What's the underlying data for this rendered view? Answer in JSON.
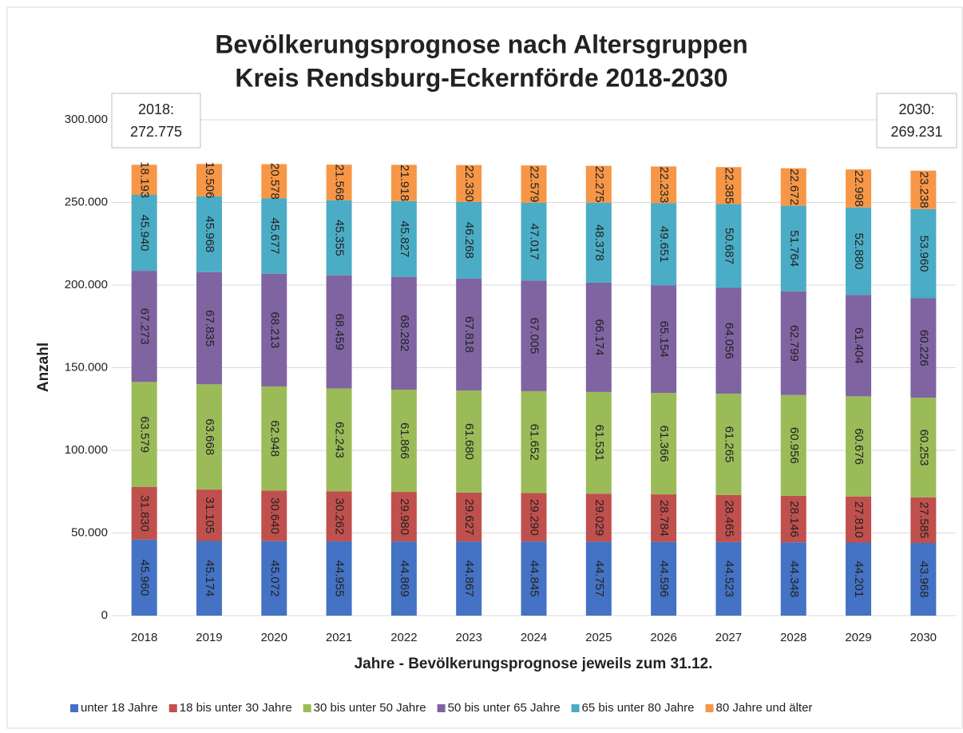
{
  "chart_data": {
    "type": "stacked_bar",
    "title": [
      "Bevölkerungsprognose nach Altersgruppen",
      "Kreis Rendsburg-Eckernförde 2018-2030"
    ],
    "ylabel": "Anzahl",
    "xlabel": "Jahre - Bevölkerungsprognose jeweils zum 31.12.",
    "categories": [
      "2018",
      "2019",
      "2020",
      "2021",
      "2022",
      "2023",
      "2024",
      "2025",
      "2026",
      "2027",
      "2028",
      "2029",
      "2030"
    ],
    "ylim": [
      0,
      300000
    ],
    "yticks": [
      0,
      {
        "value": 50000,
        "label": "50.000"
      },
      {
        "value": 100000,
        "label": "100.000"
      },
      {
        "value": 150000,
        "label": "150.000"
      },
      {
        "value": 200000,
        "label": "200.000"
      },
      {
        "value": 250000,
        "label": "250.000"
      },
      {
        "value": 300000,
        "label": "300.000"
      }
    ],
    "grid": true,
    "legend": "bottom",
    "annotations": [
      {
        "text": [
          "2018:",
          "272.775"
        ],
        "side": "left"
      },
      {
        "text": [
          "2030:",
          "269.231"
        ],
        "side": "right"
      }
    ],
    "series": [
      {
        "name": "unter 18 Jahre",
        "color": "#4472c4",
        "values": [
          45960,
          45174,
          45072,
          44955,
          44869,
          44867,
          44845,
          44757,
          44596,
          44523,
          44348,
          44201,
          43968
        ],
        "value_labels": [
          "45.960",
          "45.174",
          "45.072",
          "44.955",
          "44.869",
          "44.867",
          "44.845",
          "44.757",
          "44.596",
          "44.523",
          "44.348",
          "44.201",
          "43.968"
        ]
      },
      {
        "name": "18 bis unter 30 Jahre",
        "color": "#c0504d",
        "values": [
          31830,
          31105,
          30640,
          30262,
          29980,
          29627,
          29290,
          29029,
          28784,
          28465,
          28146,
          27810,
          27585
        ],
        "value_labels": [
          "31.830",
          "31.105",
          "30.640",
          "30.262",
          "29.980",
          "29.627",
          "29.290",
          "29.029",
          "28.784",
          "28.465",
          "28.146",
          "27.810",
          "27.585"
        ]
      },
      {
        "name": "30 bis unter 50 Jahre",
        "color": "#9bbb59",
        "values": [
          63579,
          63668,
          62948,
          62243,
          61866,
          61680,
          61652,
          61531,
          61366,
          61265,
          60956,
          60676,
          60253
        ],
        "value_labels": [
          "63.579",
          "63.668",
          "62.948",
          "62.243",
          "61.866",
          "61.680",
          "61.652",
          "61.531",
          "61.366",
          "61.265",
          "60.956",
          "60.676",
          "60.253"
        ]
      },
      {
        "name": "50 bis unter 65 Jahre",
        "color": "#8064a2",
        "values": [
          67273,
          67835,
          68213,
          68459,
          68282,
          67818,
          67005,
          66174,
          65154,
          64056,
          62799,
          61404,
          60226
        ],
        "value_labels": [
          "67.273",
          "67.835",
          "68.213",
          "68.459",
          "68.282",
          "67.818",
          "67.005",
          "66.174",
          "65.154",
          "64.056",
          "62.799",
          "61.404",
          "60.226"
        ]
      },
      {
        "name": "65 bis unter 80 Jahre",
        "color": "#4bacc6",
        "values": [
          45940,
          45968,
          45677,
          45355,
          45827,
          46268,
          47017,
          48378,
          49651,
          50687,
          51764,
          52880,
          53960
        ],
        "value_labels": [
          "45.940",
          "45.968",
          "45.677",
          "45.355",
          "45.827",
          "46.268",
          "47.017",
          "48.378",
          "49.651",
          "50.687",
          "51.764",
          "52.880",
          "53.960"
        ]
      },
      {
        "name": "80 Jahre und älter",
        "color": "#f79646",
        "values": [
          18193,
          19506,
          20578,
          21568,
          21918,
          22330,
          22579,
          22275,
          22233,
          22385,
          22672,
          22998,
          23238
        ],
        "value_labels": [
          "18.193",
          "19.506",
          "20.578",
          "21.568",
          "21.918",
          "22.330",
          "22.579",
          "22.275",
          "22.233",
          "22.385",
          "22.672",
          "22.998",
          "23.238"
        ]
      }
    ]
  }
}
